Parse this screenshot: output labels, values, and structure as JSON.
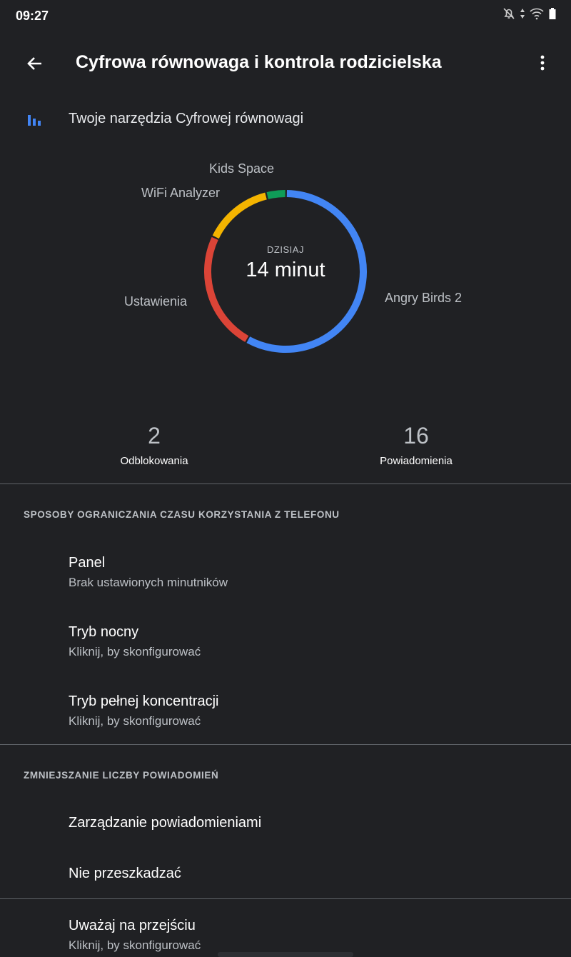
{
  "status_bar": {
    "time": "09:27",
    "icons": [
      "bell-off-icon",
      "data-arrows-icon",
      "wifi-icon",
      "battery-icon"
    ]
  },
  "header": {
    "title": "Cyfrowa równowaga i kontrola rodzicielska",
    "back_icon": "arrow-left-icon",
    "menu_icon": "more-vert-icon"
  },
  "tools": {
    "label": "Twoje narzędzia Cyfrowej równowagi",
    "icon": "bar-chart-icon"
  },
  "chart_data": {
    "type": "pie",
    "center_label": "DZISIAJ",
    "center_value": "14 minut",
    "unit": "percent share (estimated)",
    "slices": [
      {
        "name": "Angry Birds 2",
        "value": 58,
        "color": "#4285f4"
      },
      {
        "name": "Ustawienia",
        "value": 24,
        "color": "#db4437"
      },
      {
        "name": "WiFi Analyzer",
        "value": 14,
        "color": "#f4b400"
      },
      {
        "name": "Kids Space",
        "value": 4,
        "color": "#0f9d58"
      }
    ]
  },
  "stats": [
    {
      "value": "2",
      "label": "Odblokowania"
    },
    {
      "value": "16",
      "label": "Powiadomienia"
    }
  ],
  "sections": [
    {
      "title": "SPOSOBY OGRANICZANIA CZASU KORZYSTANIA Z TELEFONU",
      "items": [
        {
          "title": "Panel",
          "subtitle": "Brak ustawionych minutników"
        },
        {
          "title": "Tryb nocny",
          "subtitle": "Kliknij, by skonfigurować"
        },
        {
          "title": "Tryb pełnej koncentracji",
          "subtitle": "Kliknij, by skonfigurować"
        }
      ]
    },
    {
      "title": "ZMNIEJSZANIE LICZBY POWIADOMIEŃ",
      "items": [
        {
          "title": "Zarządzanie powiadomieniami"
        },
        {
          "title": "Nie przeszkadzać"
        }
      ]
    },
    {
      "items": [
        {
          "title": "Uważaj na przejściu",
          "subtitle": "Kliknij, by skonfigurować"
        }
      ]
    }
  ]
}
